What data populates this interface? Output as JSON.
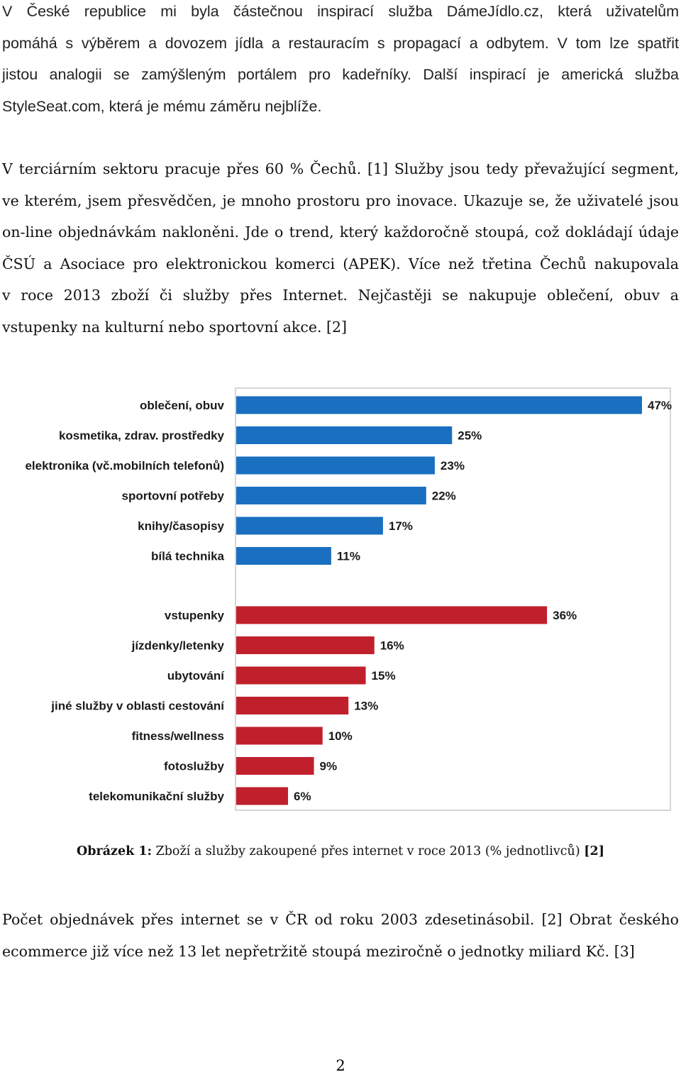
{
  "paragraph1": {
    "lines": [
      "V České republice mi byla částečnou inspirací služba DámeJídlo.cz, která uživatelům",
      "pomáhá s výběrem a dovozem jídla a restauracím s propagací a odbytem. V tom lze spatřit",
      "jistou analogii se zamýšleným portálem pro kadeřníky. Další inspirací je americká služba",
      "StyleSeat.com, která je mému záměru nejblíže."
    ]
  },
  "paragraph2": {
    "lines": [
      "V terciárním sektoru pracuje přes 60 % Čechů. [1] Služby jsou tedy převažující segment,",
      "ve kterém, jsem přesvědčen, je mnoho prostoru pro inovace. Ukazuje se, že uživatelé jsou",
      "on-line objednávkám nakloněni. Jde o trend, který každoročně stoupá, což dokládají údaje",
      "ČSÚ a Asociace pro elektronickou komerci (APEK). Více než třetina Čechů nakupovala",
      "v roce 2013 zboží či služby přes Internet. Nejčastěji se nakupuje oblečení, obuv a",
      "vstupenky na kulturní nebo sportovní akce. [2]"
    ]
  },
  "chart_data": {
    "type": "bar",
    "orientation": "horizontal",
    "unit": "%",
    "colors": {
      "goods": "#1a6fc0",
      "services": "#c0202c"
    },
    "series": [
      {
        "group": "goods",
        "categories": [
          "oblečení, obuv",
          "kosmetika, zdrav. prostředky",
          "elektronika (vč.mobilních telefonů)",
          "sportovní potřeby",
          "knihy/časopisy",
          "bílá technika"
        ],
        "values": [
          47,
          25,
          23,
          22,
          17,
          11
        ],
        "value_labels": [
          "47%",
          "25%",
          "23%",
          "22%",
          "17%",
          "11%"
        ]
      },
      {
        "group": "services",
        "categories": [
          "vstupenky",
          "jízdenky/letenky",
          "ubytování",
          "jiné služby v oblasti cestování",
          "fitness/wellness",
          "fotoslužby",
          "telekomunikační služby"
        ],
        "values": [
          36,
          16,
          15,
          13,
          10,
          9,
          6
        ],
        "value_labels": [
          "36%",
          "16%",
          "15%",
          "13%",
          "10%",
          "9%",
          "6%"
        ]
      }
    ],
    "xlim": [
      0,
      50
    ]
  },
  "caption": {
    "prefix": "Obrázek 1:",
    "text": " Zboží a služby zakoupené přes internet v roce 2013 (% jednotlivců) ",
    "ref": "[2]"
  },
  "paragraph3": {
    "lines": [
      "Počet objednávek přes internet se v ČR od roku 2003 zdesetinásobil. [2] Obrat českého",
      "ecommerce již více než 13 let nepřetržitě stoupá meziročně o jednotky miliard Kč. [3]"
    ]
  },
  "page_number": "2"
}
